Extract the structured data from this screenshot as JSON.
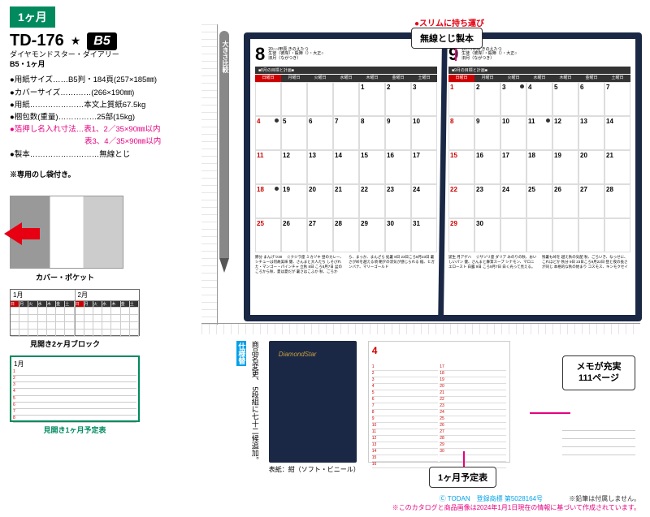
{
  "header": {
    "month_badge": "1ヶ月",
    "product_code": "TD-176",
    "star": "★",
    "product_name": "ダイヤモンドスター・ダイアリー",
    "product_subtitle": "B5・1ヶ月",
    "size_badge": "B5"
  },
  "specs": {
    "paper_size": "●用紙サイズ……B5判・184頁(257×185㎜)",
    "cover_size": "●カバーサイズ…………(266×190㎜)",
    "paper": "●用紙…………………本文上質紙67.5kg",
    "package": "●梱包数(重量)……………25部(15kg)",
    "foil_label": "●箔押し名入れ寸法…",
    "foil1": "表1、2／35×90㎜以内",
    "foil2": "表3、4／35×90㎜以内",
    "binding": "●製本………………………無線とじ"
  },
  "note": "※専用のし袋付き。",
  "pencil_label": "大きさ比較",
  "slim_label": "●スリムに持ち運び",
  "callout_binding": "無線とじ製本",
  "left_panels": {
    "cover_pocket": "カバー・ポケット",
    "two_month": "見開き2ヶ月ブロック",
    "one_month": "見開き1ヶ月予定表",
    "jan": "1月",
    "feb": "2月"
  },
  "book": {
    "left": {
      "month": "8",
      "sub1": "20○○/甲辰 きのえたつ",
      "sub2": "生徒（彼岸）・殺陣（）・大正○",
      "sub3": "旧月（ながつき）",
      "goal": "■8月の目標と計画■",
      "dow": [
        "日曜日",
        "月曜日",
        "火曜日",
        "水曜日",
        "木曜日",
        "金曜日",
        "土曜日"
      ],
      "footer": "節分 まんげつ30　 ☆クジラ座\nミカヅキ\n昼のカレー、シチューは何故美味\n健、さんまと大人たち\nしそびれた・マンゴー・パインチャ\n立秋 8日 ころ8月7日\n盆のころから秋、夏は夏だが\n暑さはこふか\n秋、ごろから、まっか、まんざら\n\n処暑 8日 23日ころ8月23日\n暑さが峠を越える頃\n朝夕の涼気が感じられる\n稲、ヒガンバナ、マリーゴールド"
    },
    "right": {
      "month": "9",
      "sub1": "20○○/甲辰 きのえたつ",
      "sub2": "生徒（彼岸）・殺陣（）・大正○",
      "sub3": "旧月（ながつき）",
      "goal": "■9月の目標と計画■",
      "dow": [
        "日曜日",
        "月曜日",
        "火曜日",
        "水曜日",
        "木曜日",
        "金曜日",
        "土曜日"
      ],
      "footer": "誕生 月アゲハ　 ☆サソリ座\nダリア\nみのりの秋、おいしいパン\n健、さんまと舞茸スープ\nシナモン、マロニエロースト\n\n白露 9日 ころ9月7日\n白く光って見える。残暑も峠を\n越え秋の気配\n秋、ごろいき、なっせに、これほどか\n\n秋分 9日 23日ころ9月22日\n昼と夜の長さが同じ\n本格的な秋の始まり\nコスモス、キンモクセイ"
    },
    "days_aug": [
      [
        "",
        "",
        "",
        "",
        "1",
        "2",
        "3"
      ],
      [
        "4",
        "5",
        "6",
        "7",
        "8",
        "9",
        "10"
      ],
      [
        "11",
        "12",
        "13",
        "14",
        "15",
        "16",
        "17"
      ],
      [
        "18",
        "19",
        "20",
        "21",
        "22",
        "23",
        "24"
      ],
      [
        "25",
        "26",
        "27",
        "28",
        "29",
        "30",
        "31"
      ]
    ],
    "days_sep": [
      [
        "1",
        "2",
        "3",
        "4",
        "5",
        "6",
        "7"
      ],
      [
        "8",
        "9",
        "10",
        "11",
        "12",
        "13",
        "14"
      ],
      [
        "15",
        "16",
        "17",
        "18",
        "19",
        "20",
        "21"
      ],
      [
        "22",
        "23",
        "24",
        "25",
        "26",
        "27",
        "28"
      ],
      [
        "29",
        "30",
        "",
        "",
        "",
        "",
        ""
      ]
    ]
  },
  "bottom": {
    "spec_change_hdr": "仕様替",
    "spec_change_body": "商品名変更、\n5段組に七十二候追加。",
    "cover_logo": "DiamondStar",
    "cover_caption": "表紙：紺（ソフト・ビニール）",
    "sched_callout": "1ヶ月予定表",
    "sched_month": "4",
    "memo_title": "メモが充実",
    "memo_pages": "111ページ",
    "sched_days": [
      "1",
      "2",
      "3",
      "4",
      "5",
      "6",
      "7",
      "8",
      "9",
      "10",
      "11",
      "12",
      "13",
      "14",
      "15",
      "16"
    ],
    "sched_days_r": [
      "17",
      "18",
      "19",
      "20",
      "21",
      "22",
      "23",
      "24",
      "25",
      "26",
      "27",
      "28",
      "29",
      "30",
      "",
      ""
    ]
  },
  "footer": {
    "trademark": "Ⓒ TODAN　登録商標 第5028164号",
    "pencil_note": "※鉛筆は付属しません。",
    "catalog_note": "※このカタログと商品画像は2024年1月1日現在の情報に基づいて作成されています。"
  },
  "colors": {
    "green": "#008a5e",
    "navy": "#1a2845",
    "red": "#e60012",
    "magenta": "#e4007f",
    "blue": "#00a0e9"
  }
}
